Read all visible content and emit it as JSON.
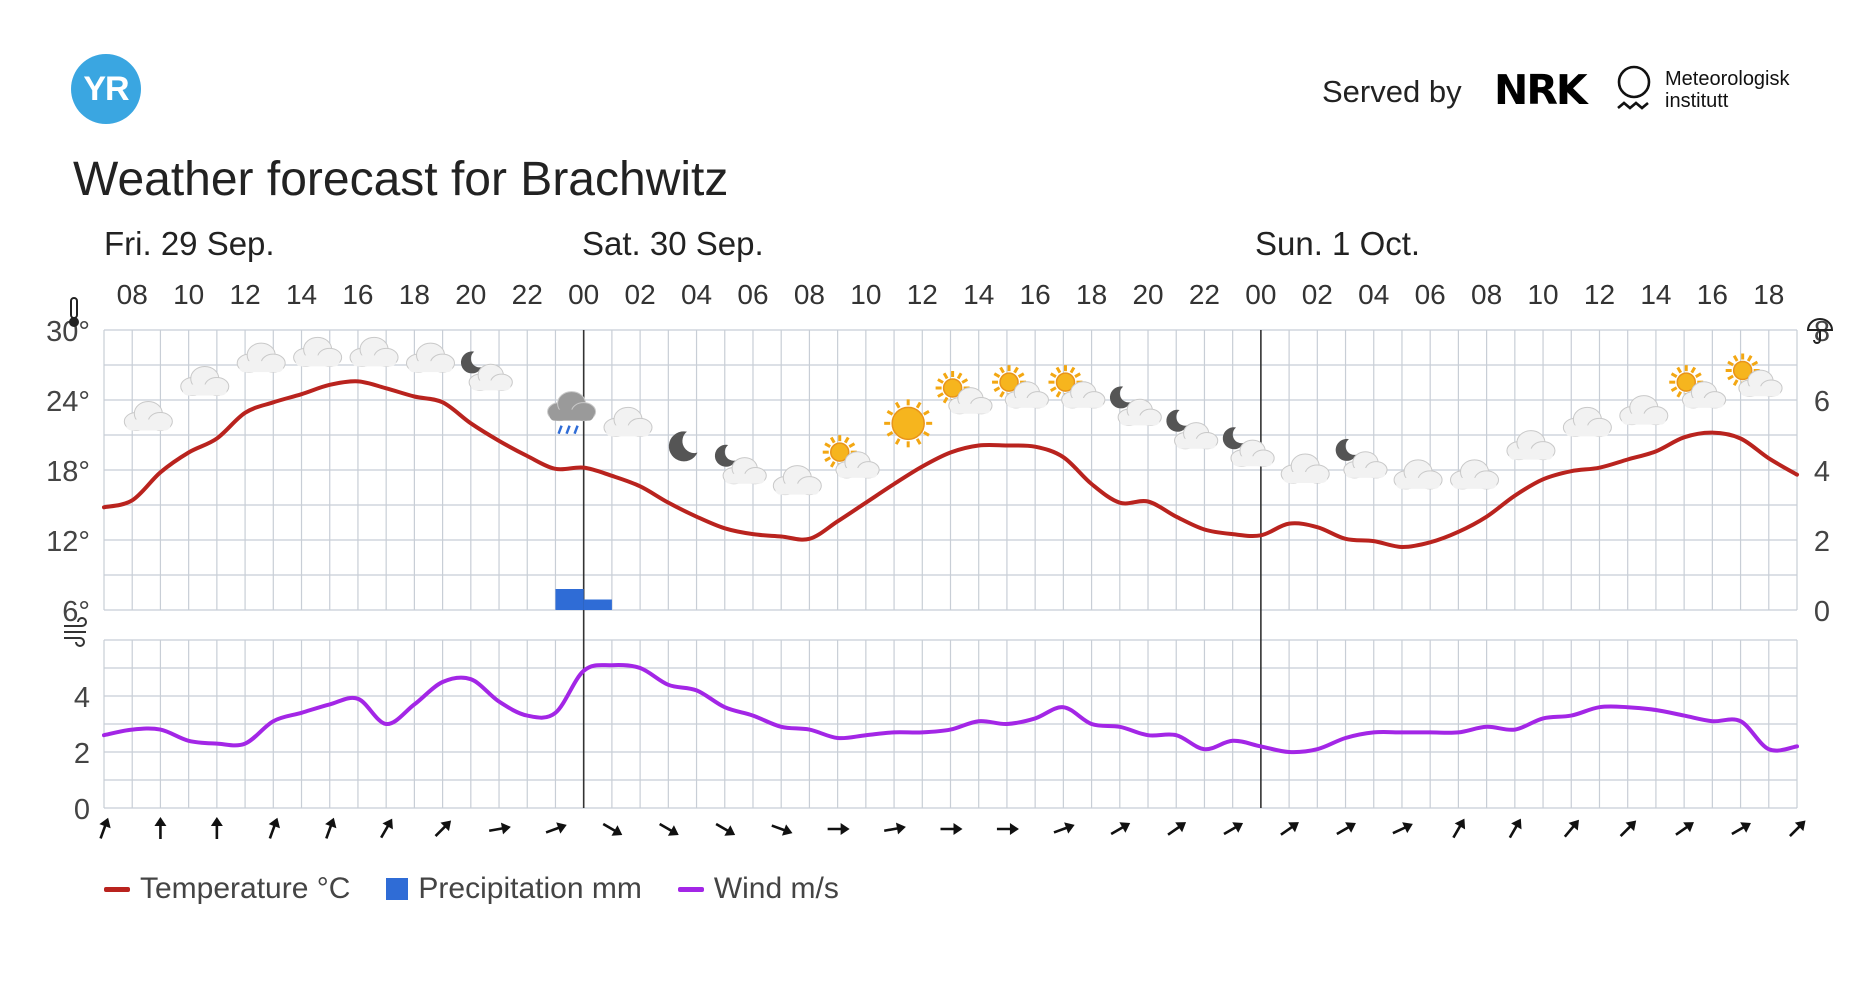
{
  "header": {
    "logo_text": "YR",
    "served_by": "Served by",
    "nrk_logo": "NRK",
    "met_line1": "Meteorologisk",
    "met_line2": "institutt"
  },
  "title": "Weather forecast for Brachwitz",
  "colors": {
    "temperature": "#b9231e",
    "precipitation": "#2f6cd6",
    "wind": "#a326e6",
    "grid": "#c8ced6",
    "logo": "#3aa6e1"
  },
  "legend": {
    "temperature": "Temperature °C",
    "precipitation": "Precipitation mm",
    "wind": "Wind m/s"
  },
  "chart_data": {
    "type": "line",
    "days": [
      {
        "label": "Fri. 29 Sep.",
        "start_hour_index": 0
      },
      {
        "label": "Sat. 30 Sep.",
        "start_hour_index": 17
      },
      {
        "label": "Sun. 1 Oct.",
        "start_hour_index": 41
      }
    ],
    "x_start": "Fri 29 Sep 07:00",
    "x_end": "Sun 1 Oct 19:00",
    "hour_labels": [
      "08",
      "10",
      "12",
      "14",
      "16",
      "18",
      "20",
      "22",
      "00",
      "02",
      "04",
      "06",
      "08",
      "10",
      "12",
      "14",
      "16",
      "18",
      "20",
      "22",
      "00",
      "02",
      "04",
      "06",
      "08",
      "10",
      "12",
      "14",
      "16",
      "18"
    ],
    "temperature": {
      "y_ticks": [
        "30°",
        "24°",
        "18°",
        "12°",
        "6°"
      ],
      "ylim": [
        6,
        30
      ],
      "x_hours_from_start": [
        0,
        1,
        2,
        3,
        4,
        5,
        6,
        7,
        8,
        9,
        10,
        11,
        12,
        13,
        14,
        15,
        16,
        17,
        18,
        19,
        20,
        21,
        22,
        23,
        24,
        25,
        26,
        27,
        28,
        29,
        30,
        31,
        32,
        33,
        34,
        35,
        36,
        37,
        38,
        39,
        40,
        41,
        42,
        43,
        44,
        45,
        46,
        47,
        48,
        49,
        50,
        51,
        52,
        53,
        54,
        55,
        56,
        57,
        58,
        59,
        60
      ],
      "values": [
        14.8,
        15.4,
        17.8,
        19.5,
        20.7,
        22.9,
        23.8,
        24.5,
        25.3,
        25.6,
        25.0,
        24.3,
        23.8,
        22.0,
        20.5,
        19.2,
        18.1,
        18.2,
        17.5,
        16.6,
        15.2,
        14.0,
        13.0,
        12.5,
        12.3,
        12.1,
        13.6,
        15.2,
        16.8,
        18.3,
        19.5,
        20.1,
        20.1,
        20.0,
        19.1,
        16.8,
        15.2,
        15.3,
        14.0,
        12.9,
        12.5,
        12.4,
        13.4,
        13.1,
        12.1,
        11.9,
        11.4,
        11.8,
        12.7,
        14.0,
        15.8,
        17.2,
        17.9,
        18.2,
        18.9,
        19.6,
        20.8,
        21.2,
        20.7,
        19.0,
        17.6
      ]
    },
    "precipitation": {
      "y_ticks": [
        "8",
        "6",
        "4",
        "2",
        "0"
      ],
      "ylim": [
        0,
        8
      ],
      "bars": [
        {
          "hour": "23:00 Fri",
          "x_hours_from_start": 16,
          "value": 0.6
        },
        {
          "hour": "00:00 Sat",
          "x_hours_from_start": 17,
          "value": 0.3
        }
      ]
    },
    "wind": {
      "y_ticks": [
        "4",
        "2",
        "0"
      ],
      "ylim": [
        0,
        6
      ],
      "values": [
        2.6,
        2.8,
        2.8,
        2.4,
        2.3,
        2.3,
        3.1,
        3.4,
        3.7,
        3.9,
        3.0,
        3.7,
        4.5,
        4.6,
        3.8,
        3.3,
        3.4,
        4.9,
        5.1,
        5.0,
        4.4,
        4.2,
        3.6,
        3.3,
        2.9,
        2.8,
        2.5,
        2.6,
        2.7,
        2.7,
        2.8,
        3.1,
        3.0,
        3.2,
        3.6,
        3.0,
        2.9,
        2.6,
        2.6,
        2.1,
        2.4,
        2.2,
        2.0,
        2.1,
        2.5,
        2.7,
        2.7,
        2.7,
        2.7,
        2.9,
        2.8,
        3.2,
        3.3,
        3.6,
        3.6,
        3.5,
        3.3,
        3.1,
        3.1,
        2.1,
        2.2
      ]
    },
    "weather_icons": [
      {
        "x_hours_from_start": 1,
        "icon": "cloudy-icon",
        "temp_at": 22.5
      },
      {
        "x_hours_from_start": 3,
        "icon": "cloudy-icon",
        "temp_at": 25.5
      },
      {
        "x_hours_from_start": 5,
        "icon": "cloudy-icon",
        "temp_at": 27.5
      },
      {
        "x_hours_from_start": 7,
        "icon": "cloudy-icon",
        "temp_at": 28.0
      },
      {
        "x_hours_from_start": 9,
        "icon": "cloudy-icon",
        "temp_at": 28.0
      },
      {
        "x_hours_from_start": 11,
        "icon": "cloudy-icon",
        "temp_at": 27.5
      },
      {
        "x_hours_from_start": 13,
        "icon": "partly-cloudy-night-icon",
        "temp_at": 26.0
      },
      {
        "x_hours_from_start": 16,
        "icon": "rain-icon",
        "temp_at": 23.0
      },
      {
        "x_hours_from_start": 18,
        "icon": "cloudy-icon",
        "temp_at": 22.0
      },
      {
        "x_hours_from_start": 20,
        "icon": "moon-icon",
        "temp_at": 20.0
      },
      {
        "x_hours_from_start": 22,
        "icon": "partly-cloudy-night-icon",
        "temp_at": 18.0
      },
      {
        "x_hours_from_start": 24,
        "icon": "cloudy-icon",
        "temp_at": 17.0
      },
      {
        "x_hours_from_start": 26,
        "icon": "partly-cloudy-day-icon",
        "temp_at": 18.5
      },
      {
        "x_hours_from_start": 28,
        "icon": "sun-icon",
        "temp_at": 22.0
      },
      {
        "x_hours_from_start": 30,
        "icon": "partly-cloudy-day-icon",
        "temp_at": 24.0
      },
      {
        "x_hours_from_start": 32,
        "icon": "partly-cloudy-day-icon",
        "temp_at": 24.5
      },
      {
        "x_hours_from_start": 34,
        "icon": "partly-cloudy-day-icon",
        "temp_at": 24.5
      },
      {
        "x_hours_from_start": 36,
        "icon": "partly-cloudy-night-icon",
        "temp_at": 23.0
      },
      {
        "x_hours_from_start": 38,
        "icon": "partly-cloudy-night-icon",
        "temp_at": 21.0
      },
      {
        "x_hours_from_start": 40,
        "icon": "partly-cloudy-night-icon",
        "temp_at": 19.5
      },
      {
        "x_hours_from_start": 42,
        "icon": "cloudy-icon",
        "temp_at": 18.0
      },
      {
        "x_hours_from_start": 44,
        "icon": "partly-cloudy-night-icon",
        "temp_at": 18.5
      },
      {
        "x_hours_from_start": 46,
        "icon": "cloudy-icon",
        "temp_at": 17.5
      },
      {
        "x_hours_from_start": 48,
        "icon": "cloudy-icon",
        "temp_at": 17.5
      },
      {
        "x_hours_from_start": 50,
        "icon": "cloudy-icon",
        "temp_at": 20.0
      },
      {
        "x_hours_from_start": 52,
        "icon": "cloudy-icon",
        "temp_at": 22.0
      },
      {
        "x_hours_from_start": 54,
        "icon": "cloudy-icon",
        "temp_at": 23.0
      },
      {
        "x_hours_from_start": 56,
        "icon": "partly-cloudy-day-icon",
        "temp_at": 24.5
      },
      {
        "x_hours_from_start": 58,
        "icon": "partly-cloudy-day-icon",
        "temp_at": 25.5
      }
    ],
    "wind_directions_deg": [
      200,
      180,
      180,
      200,
      200,
      210,
      225,
      260,
      250,
      300,
      300,
      300,
      290,
      270,
      260,
      270,
      270,
      250,
      240,
      235,
      240,
      235,
      240,
      245,
      210,
      210,
      220,
      225,
      235,
      240,
      225
    ]
  }
}
